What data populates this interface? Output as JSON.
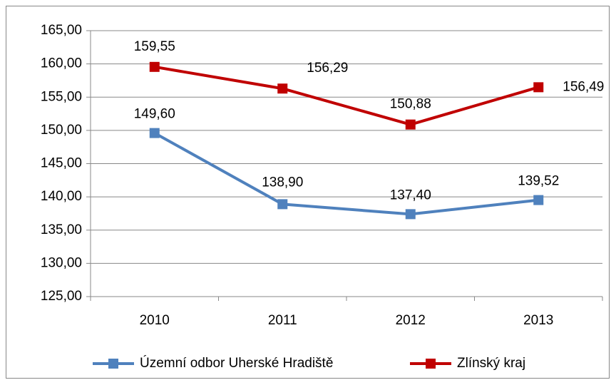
{
  "chart_data": {
    "type": "line",
    "categories": [
      "2010",
      "2011",
      "2012",
      "2013"
    ],
    "series": [
      {
        "name": "Územní odbor Uherské Hradiště",
        "color": "#4f81bd",
        "values": [
          149.6,
          138.9,
          137.4,
          139.52
        ],
        "value_labels": [
          "149,60",
          "138,90",
          "137,40",
          "139,52"
        ]
      },
      {
        "name": "Zlínský kraj",
        "color": "#c00000",
        "values": [
          159.55,
          156.29,
          150.88,
          156.49
        ],
        "value_labels": [
          "159,55",
          "156,29",
          "150,88",
          "156,49"
        ]
      }
    ],
    "ylim": [
      125,
      165
    ],
    "yticks": [
      {
        "value": 125,
        "label": "125,00"
      },
      {
        "value": 130,
        "label": "130,00"
      },
      {
        "value": 135,
        "label": "135,00"
      },
      {
        "value": 140,
        "label": "140,00"
      },
      {
        "value": 145,
        "label": "145,00"
      },
      {
        "value": 150,
        "label": "150,00"
      },
      {
        "value": 155,
        "label": "155,00"
      },
      {
        "value": 160,
        "label": "160,00"
      },
      {
        "value": 165,
        "label": "165,00"
      }
    ],
    "grid": true,
    "legend": "bottom"
  }
}
